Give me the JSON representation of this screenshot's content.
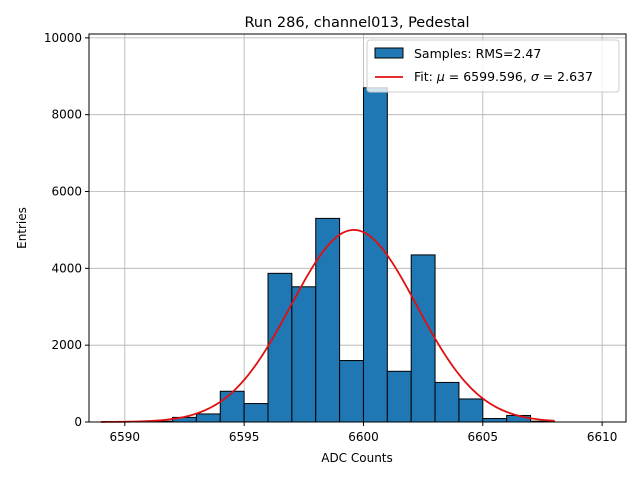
{
  "chart_data": {
    "type": "bar",
    "title": "Run 286, channel013, Pedestal",
    "xlabel": "ADC Counts",
    "ylabel": "Entries",
    "xlim": [
      6588.5,
      6611.0
    ],
    "ylim": [
      0,
      10100
    ],
    "xticks": [
      6590,
      6595,
      6600,
      6605,
      6610
    ],
    "yticks": [
      0,
      2000,
      4000,
      6000,
      8000,
      10000
    ],
    "grid": true,
    "legend_position": "top-right",
    "histogram": {
      "name": "Samples: RMS=2.47",
      "color": "#1f77b4",
      "edge_color": "#000000",
      "bin_width": 1,
      "bin_starts": [
        6591,
        6592,
        6593,
        6594,
        6595,
        6596,
        6597,
        6598,
        6599,
        6600,
        6601,
        6602,
        6603,
        6604,
        6605,
        6606,
        6607
      ],
      "values": [
        20,
        120,
        210,
        800,
        480,
        3870,
        3520,
        5300,
        1600,
        8700,
        1320,
        4350,
        1030,
        600,
        90,
        170,
        20
      ]
    },
    "fit": {
      "name": "Fit: μ = 6599.596, σ = 2.637",
      "name_prefix": "Fit: ",
      "mu_symbol": "μ",
      "mu_text": " = 6599.596, ",
      "sigma_symbol": "σ",
      "sigma_text": " = 2.637",
      "color": "#e01010",
      "mu": 6599.596,
      "sigma": 2.637,
      "amplitude": 5000,
      "x_range": [
        6589,
        6608
      ]
    }
  }
}
